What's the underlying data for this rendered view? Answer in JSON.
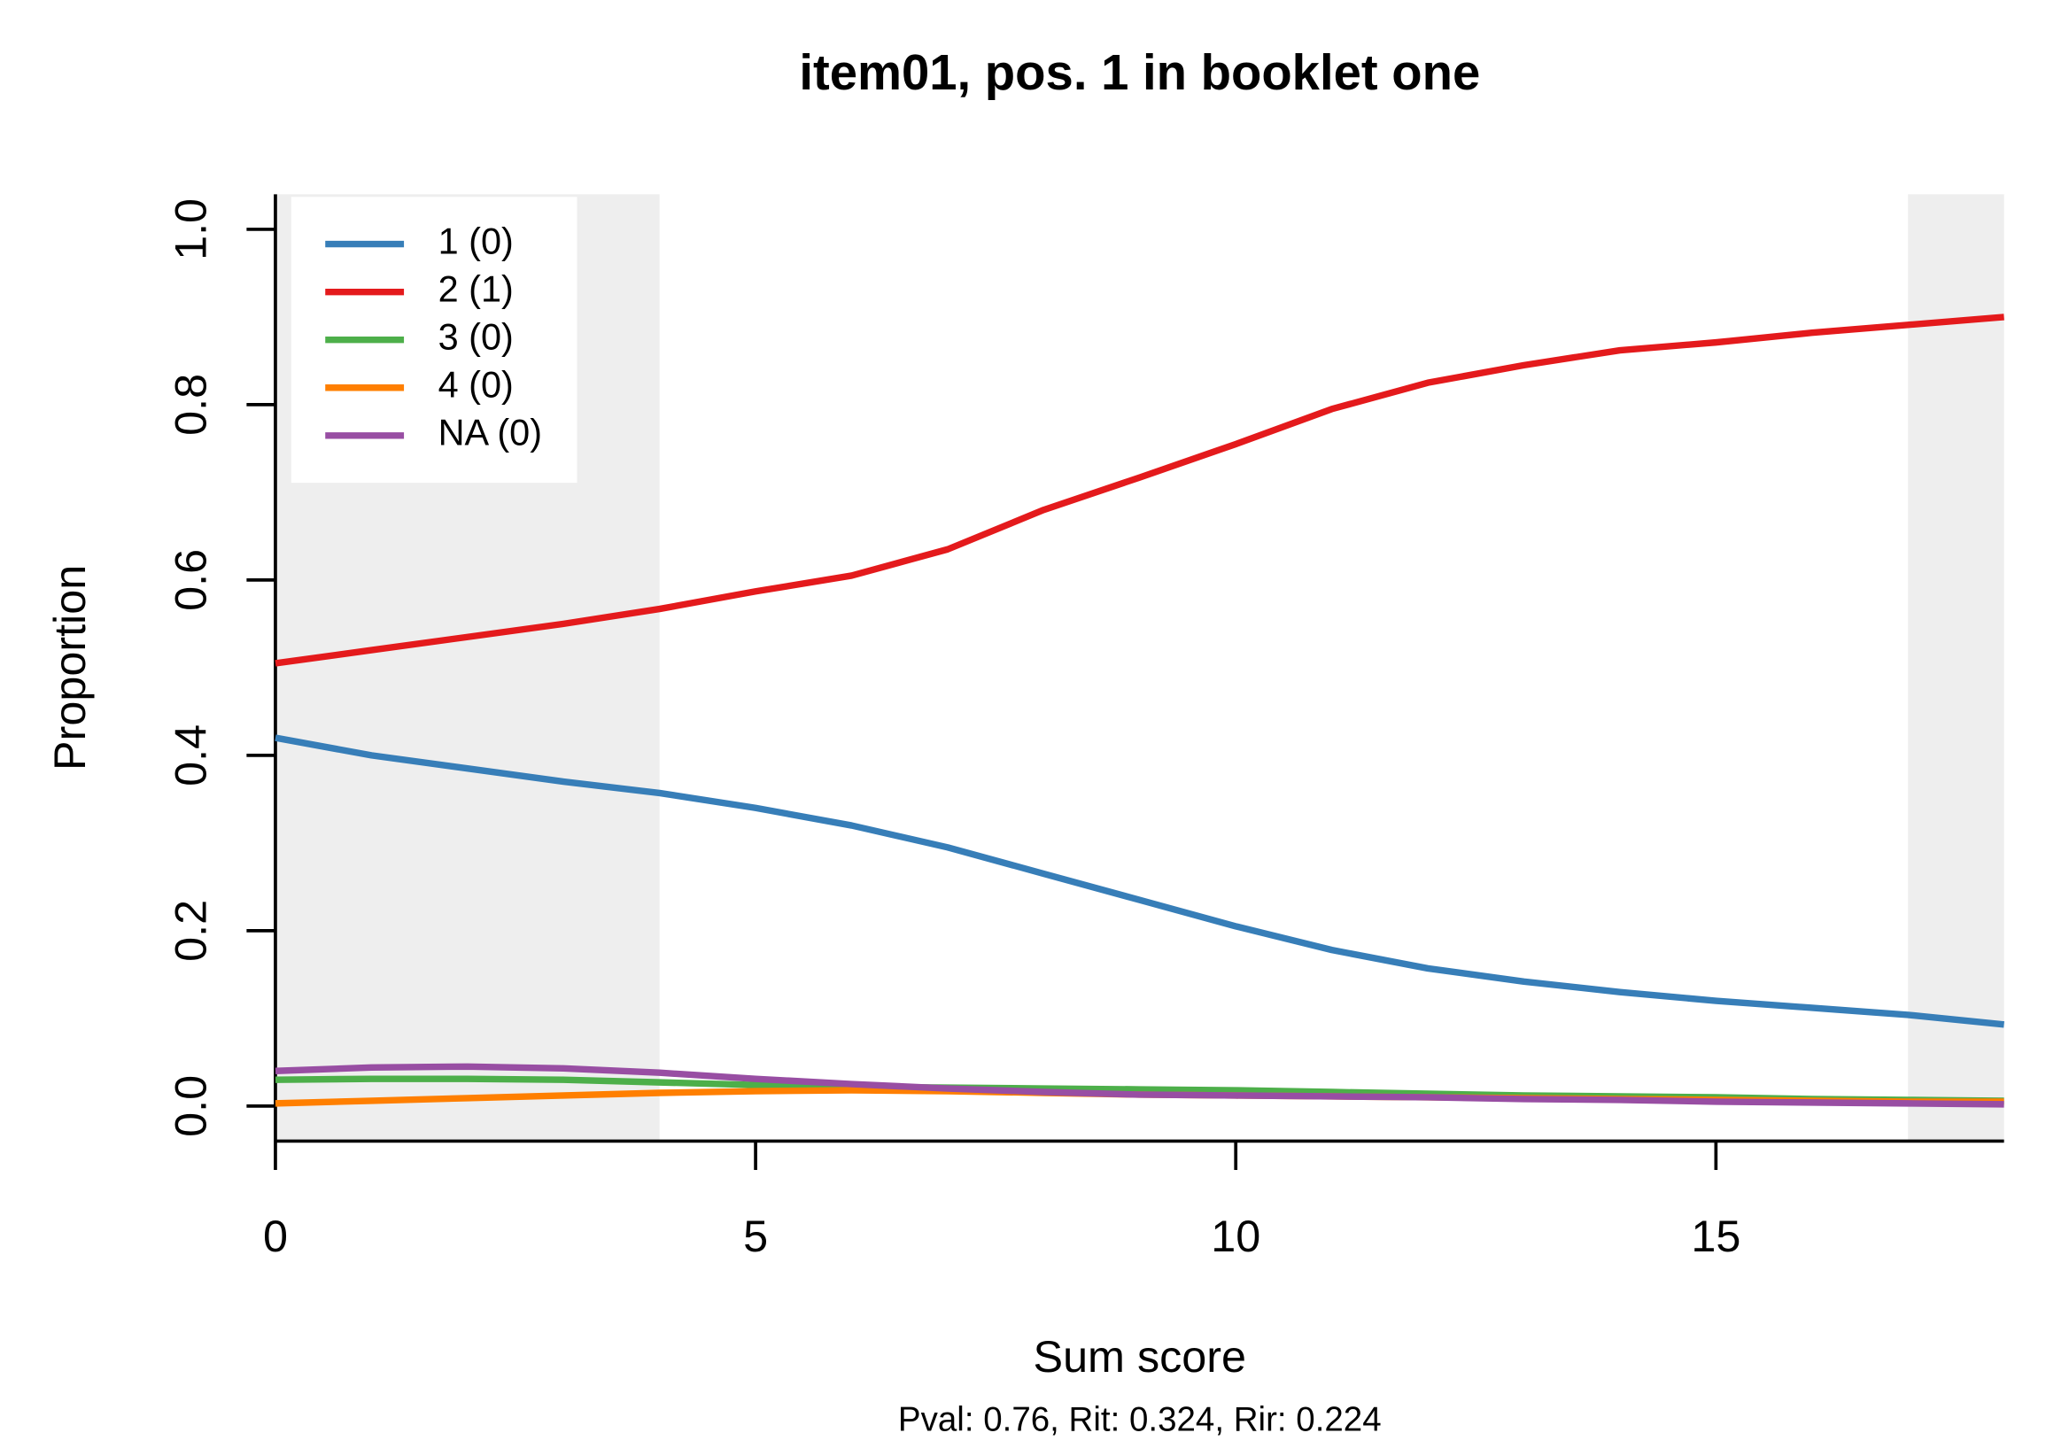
{
  "chart_data": {
    "type": "line",
    "title": "item01, pos. 1 in booklet one",
    "subtitle": "Pval: 0.76, Rit: 0.324, Rir: 0.224",
    "x_label": "Sum score",
    "y_label": "Proportion",
    "x": [
      0,
      1,
      2,
      3,
      4,
      5,
      6,
      7,
      8,
      9,
      10,
      11,
      12,
      13,
      14,
      15,
      16,
      17,
      18
    ],
    "series": [
      {
        "name": "1 (0)",
        "color": "#377eb8",
        "values": [
          0.42,
          0.4,
          0.385,
          0.37,
          0.357,
          0.34,
          0.32,
          0.295,
          0.265,
          0.235,
          0.205,
          0.178,
          0.157,
          0.142,
          0.13,
          0.12,
          0.112,
          0.104,
          0.093
        ]
      },
      {
        "name": "2 (1)",
        "color": "#e41a1c",
        "values": [
          0.505,
          0.52,
          0.535,
          0.55,
          0.567,
          0.587,
          0.605,
          0.635,
          0.68,
          0.717,
          0.755,
          0.795,
          0.825,
          0.845,
          0.862,
          0.871,
          0.882,
          0.891,
          0.9
        ]
      },
      {
        "name": "3 (0)",
        "color": "#4daf4a",
        "values": [
          0.03,
          0.031,
          0.031,
          0.03,
          0.027,
          0.024,
          0.022,
          0.021,
          0.02,
          0.019,
          0.018,
          0.016,
          0.014,
          0.012,
          0.011,
          0.01,
          0.008,
          0.007,
          0.006
        ]
      },
      {
        "name": "4 (0)",
        "color": "#ff7f00",
        "values": [
          0.003,
          0.006,
          0.009,
          0.012,
          0.015,
          0.017,
          0.018,
          0.017,
          0.015,
          0.013,
          0.012,
          0.011,
          0.01,
          0.009,
          0.008,
          0.007,
          0.006,
          0.005,
          0.005
        ]
      },
      {
        "name": "NA (0)",
        "color": "#984ea3",
        "values": [
          0.04,
          0.044,
          0.045,
          0.043,
          0.038,
          0.031,
          0.025,
          0.02,
          0.016,
          0.013,
          0.012,
          0.011,
          0.01,
          0.008,
          0.007,
          0.005,
          0.004,
          0.003,
          0.002
        ]
      }
    ],
    "shaded_ranges": [
      [
        0,
        4
      ],
      [
        17,
        18
      ]
    ],
    "shade_color": "#eeeeee",
    "xlim": [
      0,
      18
    ],
    "ylim": [
      -0.04,
      1.04
    ],
    "xticks": [
      0,
      5,
      10,
      15
    ],
    "yticks": [
      {
        "value": 0,
        "label": "0.0"
      },
      0.2,
      0.4,
      0.6,
      0.8,
      {
        "value": 1,
        "label": "1.0"
      }
    ],
    "legend": "topleft"
  }
}
